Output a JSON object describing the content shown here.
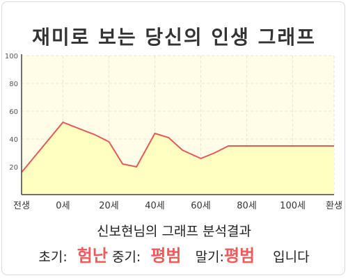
{
  "title": "재미로 보는 당신의 인생 그래프",
  "chart_data": {
    "type": "area",
    "x_labels": [
      "전생",
      "0세",
      "20세",
      "40세",
      "60세",
      "80세",
      "100세",
      "환생"
    ],
    "x_label_positions": [
      -18,
      0,
      20,
      40,
      60,
      80,
      100,
      118
    ],
    "x": [
      -18,
      0,
      14,
      20,
      26,
      32,
      40,
      46,
      52,
      60,
      66,
      72,
      80,
      92,
      100,
      106,
      118
    ],
    "y": [
      16,
      52,
      43,
      38,
      22,
      20,
      44,
      41,
      32,
      26,
      30,
      35,
      35,
      35,
      35,
      35,
      35
    ],
    "xlim": [
      -18,
      118
    ],
    "ylim": [
      0,
      100
    ],
    "y_ticks": [
      20,
      40,
      60,
      80,
      100
    ],
    "grid": true,
    "line_color": "#e05a5a",
    "fill_color": "#ffffc0",
    "plot_background": "#fffde8",
    "grid_color": "#e6e6d0"
  },
  "summary": {
    "title": "신보현님의 그래프 분석결과",
    "early_label": "초기:",
    "early_value": "험난",
    "middle_label": "중기:",
    "middle_value": "평범",
    "late_label": "말기:",
    "late_value": "평범",
    "ending": "입니다"
  }
}
